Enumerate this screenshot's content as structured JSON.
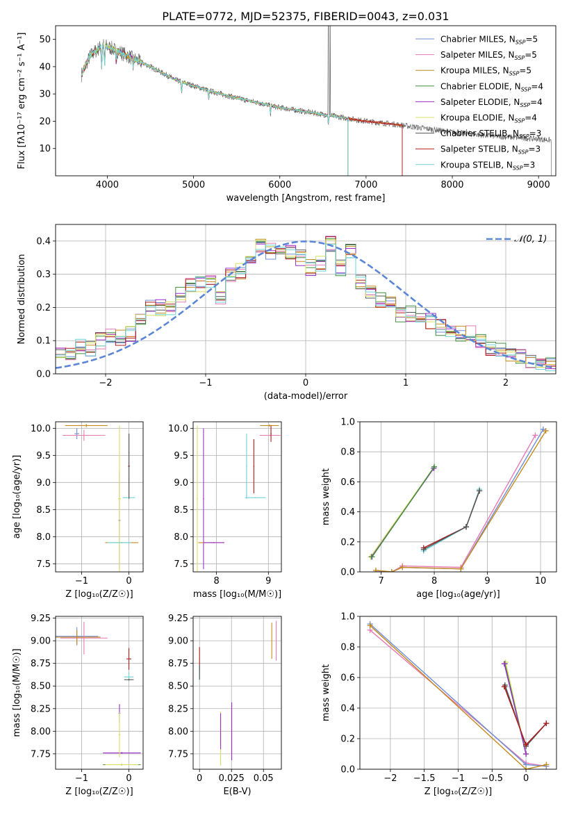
{
  "figure_title": "PLATE=0772, MJD=52375, FIBERID=0043, z=0.031",
  "models": [
    {
      "label": "Chabrier MILES, N",
      "nssp": "=5",
      "color": "#6b8ed6"
    },
    {
      "label": "Salpeter MILES, N",
      "nssp": "=5",
      "color": "#e879b4"
    },
    {
      "label": "Kroupa MILES, N",
      "nssp": "=5",
      "color": "#c58a1d"
    },
    {
      "label": "Chabrier ELODIE, N",
      "nssp": "=4",
      "color": "#3f8f3f"
    },
    {
      "label": "Salpeter ELODIE, N",
      "nssp": "=4",
      "color": "#9b2ecb"
    },
    {
      "label": "Kroupa ELODIE, N",
      "nssp": "=4",
      "color": "#d6e05c"
    },
    {
      "label": "Chabrier STELIB, N",
      "nssp": "=3",
      "color": "#555555"
    },
    {
      "label": "Salpeter STELIB, N",
      "nssp": "=3",
      "color": "#b01a1a"
    },
    {
      "label": "Kroupa STELIB, N",
      "nssp": "=3",
      "color": "#6cd3d8"
    }
  ],
  "legend_sub": "SSP",
  "chart_data": [
    {
      "id": "spectrum",
      "type": "line",
      "xlabel": "wavelength [Angstrom, rest frame]",
      "ylabel": "Flux [fλ10⁻¹⁷ erg cm⁻² s⁻¹ A⁻¹]",
      "xlim": [
        3400,
        9200
      ],
      "ylim": [
        0,
        55
      ],
      "xticks": [
        4000,
        5000,
        6000,
        7000,
        8000,
        9000
      ],
      "yticks": [
        10,
        20,
        30,
        40,
        50
      ],
      "continuum": [
        [
          3700,
          37
        ],
        [
          3800,
          44
        ],
        [
          3950,
          48
        ],
        [
          4100,
          46
        ],
        [
          4300,
          43
        ],
        [
          4500,
          40
        ],
        [
          4800,
          35
        ],
        [
          5000,
          33
        ],
        [
          5200,
          31
        ],
        [
          5500,
          28.5
        ],
        [
          6000,
          25
        ],
        [
          6500,
          22.5
        ],
        [
          7000,
          20
        ],
        [
          7300,
          19
        ],
        [
          7420,
          18.5
        ],
        [
          8000,
          16
        ],
        [
          8500,
          14.5
        ],
        [
          9000,
          13.5
        ],
        [
          9150,
          13
        ]
      ],
      "model_end": [
        [
          0,
          7420
        ],
        [
          1,
          7420
        ],
        [
          2,
          7420
        ],
        [
          3,
          6790
        ],
        [
          4,
          6790
        ],
        [
          5,
          6790
        ],
        [
          6,
          9150
        ],
        [
          7,
          7420
        ],
        [
          8,
          6790
        ]
      ]
    },
    {
      "id": "residuals",
      "type": "line",
      "xlabel": "(data-model)/error",
      "ylabel": "Normed distribution",
      "xlim": [
        -2.5,
        2.5
      ],
      "ylim": [
        0,
        0.45
      ],
      "xticks": [
        -2,
        -1,
        0,
        1,
        2
      ],
      "yticks": [
        0.0,
        0.1,
        0.2,
        0.3,
        0.4
      ],
      "ref_curve": "𝒩(0, 1)",
      "bin_centers": [
        -2.45,
        -2.35,
        -2.25,
        -2.15,
        -2.05,
        -1.95,
        -1.85,
        -1.75,
        -1.65,
        -1.55,
        -1.45,
        -1.35,
        -1.25,
        -1.15,
        -1.05,
        -0.95,
        -0.85,
        -0.75,
        -0.65,
        -0.55,
        -0.45,
        -0.35,
        -0.25,
        -0.15,
        -0.05,
        0.05,
        0.15,
        0.25,
        0.35,
        0.45,
        0.55,
        0.65,
        0.75,
        0.85,
        0.95,
        1.05,
        1.15,
        1.25,
        1.35,
        1.45,
        1.55,
        1.65,
        1.75,
        1.85,
        1.95,
        2.05,
        2.15,
        2.25,
        2.35,
        2.45
      ],
      "hist_mean": [
        0.055,
        0.06,
        0.08,
        0.075,
        0.1,
        0.11,
        0.11,
        0.12,
        0.16,
        0.2,
        0.2,
        0.2,
        0.24,
        0.27,
        0.27,
        0.28,
        0.23,
        0.3,
        0.31,
        0.34,
        0.39,
        0.37,
        0.38,
        0.37,
        0.35,
        0.32,
        0.33,
        0.39,
        0.32,
        0.37,
        0.28,
        0.25,
        0.22,
        0.22,
        0.18,
        0.18,
        0.16,
        0.16,
        0.14,
        0.13,
        0.12,
        0.12,
        0.1,
        0.08,
        0.07,
        0.06,
        0.05,
        0.04,
        0.035,
        0.03
      ]
    },
    {
      "id": "age-vs-z",
      "type": "scatter",
      "xlabel": "Z [log₁₀(Z/Z☉)]",
      "ylabel": "age  [log₁₀(age/yr)]",
      "xlim": [
        -1.55,
        0.3
      ],
      "ylim": [
        7.35,
        10.12
      ],
      "xticks": [
        -1,
        0
      ],
      "yticks": [
        7.5,
        8.0,
        8.5,
        9.0,
        9.5,
        10.0
      ],
      "points": [
        {
          "m": 0,
          "x": -1.1,
          "y": 9.9,
          "ex": 0.05,
          "ey": 0.1
        },
        {
          "m": 1,
          "x": -0.95,
          "y": 9.87,
          "ex": 0.45,
          "ey": 0.1
        },
        {
          "m": 2,
          "x": -0.9,
          "y": 10.05,
          "ex": 0.45,
          "ey": 0.03
        },
        {
          "m": 4,
          "x": -0.2,
          "y": 8.3,
          "ex": 0.02,
          "ey": 0.9
        },
        {
          "m": 5,
          "x": -0.2,
          "y": 8.7,
          "ex": 0.03,
          "ey": 1.35
        },
        {
          "m": 7,
          "x": 0.0,
          "y": 9.3,
          "ex": 0.02,
          "ey": 0.6
        },
        {
          "m": 8,
          "x": 0.0,
          "y": 8.72,
          "ex": 0.13,
          "ey": 0.01
        },
        {
          "m": 6,
          "x": 0.0,
          "y": 9.3,
          "ex": 0.01,
          "ey": 0.6
        },
        {
          "m": 2,
          "x": -0.15,
          "y": 7.89,
          "ex": 0.35,
          "ey": 0.01
        },
        {
          "m": 8,
          "x": -0.2,
          "y": 7.89,
          "ex": 0.25,
          "ey": 0.01
        }
      ]
    },
    {
      "id": "age-vs-mass",
      "type": "scatter",
      "xlabel": "mass [log₁₀(M/M☉)]",
      "ylabel": "",
      "xlim": [
        7.55,
        9.25
      ],
      "ylim": [
        7.35,
        10.12
      ],
      "xticks": [
        8,
        9
      ],
      "yticks": [
        7.5,
        8.0,
        8.5,
        9.0,
        9.5,
        10.0
      ],
      "points": [
        {
          "m": 5,
          "x": 7.63,
          "y": 8.7,
          "ex": 0.01,
          "ey": 1.35
        },
        {
          "m": 4,
          "x": 7.75,
          "y": 8.7,
          "ex": 0.01,
          "ey": 1.3
        },
        {
          "m": 2,
          "x": 7.9,
          "y": 7.89,
          "ex": 0.25,
          "ey": 0.01
        },
        {
          "m": 4,
          "x": 7.95,
          "y": 7.89,
          "ex": 0.2,
          "ey": 0.01
        },
        {
          "m": 8,
          "x": 8.58,
          "y": 9.3,
          "ex": 0.01,
          "ey": 0.6
        },
        {
          "m": 7,
          "x": 8.72,
          "y": 9.3,
          "ex": 0.01,
          "ey": 0.5
        },
        {
          "m": 8,
          "x": 8.75,
          "y": 8.72,
          "ex": 0.2,
          "ey": 0.01
        },
        {
          "m": 2,
          "x": 9.02,
          "y": 10.05,
          "ex": 0.18,
          "ey": 0.02
        },
        {
          "m": 1,
          "x": 9.03,
          "y": 9.87,
          "ex": 0.2,
          "ey": 0.01
        },
        {
          "m": 7,
          "x": 9.05,
          "y": 9.9,
          "ex": 0.01,
          "ey": 0.15
        }
      ]
    },
    {
      "id": "weight-vs-age",
      "type": "line",
      "xlabel": "age  [log₁₀(age/yr)]",
      "ylabel": "mass weight",
      "xlim": [
        6.6,
        10.3
      ],
      "ylim": [
        0,
        1
      ],
      "xticks": [
        7,
        8,
        9,
        10
      ],
      "yticks": [
        0.0,
        0.2,
        0.4,
        0.6,
        0.8,
        1.0
      ],
      "series": [
        {
          "m": 5,
          "x": [
            6.8,
            8.0
          ],
          "y": [
            0.1,
            0.7
          ]
        },
        {
          "m": 4,
          "x": [
            6.82,
            7.99
          ],
          "y": [
            0.1,
            0.69
          ]
        },
        {
          "m": 3,
          "x": [
            6.83,
            8.0
          ],
          "y": [
            0.1,
            0.7
          ]
        },
        {
          "m": 8,
          "x": [
            7.8,
            8.6,
            8.85
          ],
          "y": [
            0.14,
            0.3,
            0.55
          ]
        },
        {
          "m": 7,
          "x": [
            7.8,
            8.6,
            8.85
          ],
          "y": [
            0.16,
            0.3,
            0.54
          ]
        },
        {
          "m": 6,
          "x": [
            7.8,
            8.6,
            8.85
          ],
          "y": [
            0.15,
            0.3,
            0.54
          ]
        },
        {
          "m": 1,
          "x": [
            6.9,
            7.2,
            7.4,
            8.5,
            9.9
          ],
          "y": [
            0.0,
            0.0,
            0.04,
            0.03,
            0.91
          ]
        },
        {
          "m": 0,
          "x": [
            6.9,
            7.2,
            7.4,
            8.5,
            10.05
          ],
          "y": [
            0.0,
            0.0,
            0.03,
            0.02,
            0.95
          ]
        },
        {
          "m": 2,
          "x": [
            6.9,
            7.2,
            7.4,
            8.5,
            10.1
          ],
          "y": [
            0.01,
            0.0,
            0.03,
            0.02,
            0.94
          ]
        }
      ]
    },
    {
      "id": "mass-vs-z",
      "type": "scatter",
      "xlabel": "Z [log₁₀(Z/Z☉)]",
      "ylabel": "mass [log₁₀(M/M☉)]",
      "xlim": [
        -1.55,
        0.3
      ],
      "ylim": [
        7.58,
        9.27
      ],
      "xticks": [
        -1,
        0
      ],
      "yticks": [
        7.75,
        8.0,
        8.25,
        8.5,
        8.75,
        9.0,
        9.25
      ],
      "points": [
        {
          "m": 0,
          "x": -1.1,
          "y": 9.05,
          "ex": 0.45,
          "ey": 0.1
        },
        {
          "m": 1,
          "x": -0.95,
          "y": 9.03,
          "ex": 0.5,
          "ey": 0.18
        },
        {
          "m": 2,
          "x": -1.1,
          "y": 9.04,
          "ex": 0.5,
          "ey": 0.08
        },
        {
          "m": 7,
          "x": 0.0,
          "y": 8.8,
          "ex": 0.05,
          "ey": 0.12
        },
        {
          "m": 8,
          "x": 0.0,
          "y": 8.6,
          "ex": 0.1,
          "ey": 0.05
        },
        {
          "m": 6,
          "x": 0.0,
          "y": 8.57,
          "ex": 0.1,
          "ey": 0.01
        },
        {
          "m": 4,
          "x": -0.2,
          "y": 8.2,
          "ex": 0.02,
          "ey": 0.1
        },
        {
          "m": 4,
          "x": -0.15,
          "y": 7.76,
          "ex": 0.4,
          "ey": 0.01
        },
        {
          "m": 5,
          "x": -0.2,
          "y": 7.96,
          "ex": 0.02,
          "ey": 0.25
        },
        {
          "m": 3,
          "x": -0.15,
          "y": 7.63,
          "ex": 0.4,
          "ey": 0.01
        },
        {
          "m": 5,
          "x": -0.15,
          "y": 7.63,
          "ex": 0.35,
          "ey": 0.01
        }
      ]
    },
    {
      "id": "mass-vs-ebv",
      "type": "scatter",
      "xlabel": "E(B-V)",
      "ylabel": "",
      "xlim": [
        -0.005,
        0.064
      ],
      "ylim": [
        7.58,
        9.27
      ],
      "xticks": [
        0.0,
        0.025,
        0.05
      ],
      "yticks": [
        7.75,
        8.0,
        8.25,
        8.5,
        8.75,
        9.0,
        9.25
      ],
      "points": [
        {
          "m": 7,
          "x": 0.0,
          "y": 8.8,
          "ex": 0.0002,
          "ey": 0.13
        },
        {
          "m": 8,
          "x": 0.0,
          "y": 8.65,
          "ex": 0.0002,
          "ey": 0.08
        },
        {
          "m": 6,
          "x": 0.0,
          "y": 8.65,
          "ex": 0.0002,
          "ey": 0.08
        },
        {
          "m": 5,
          "x": 0.0165,
          "y": 7.92,
          "ex": 0.0002,
          "ey": 0.3
        },
        {
          "m": 4,
          "x": 0.0165,
          "y": 8.0,
          "ex": 0.0002,
          "ey": 0.2
        },
        {
          "m": 4,
          "x": 0.0252,
          "y": 8.0,
          "ex": 0.0002,
          "ey": 0.32
        },
        {
          "m": 2,
          "x": 0.0565,
          "y": 9.0,
          "ex": 0.0002,
          "ey": 0.2
        },
        {
          "m": 1,
          "x": 0.06,
          "y": 9.0,
          "ex": 0.0002,
          "ey": 0.22
        }
      ]
    },
    {
      "id": "weight-vs-z",
      "type": "line",
      "xlabel": "Z [log₁₀(Z/Z☉)]",
      "ylabel": "mass weight",
      "xlim": [
        -2.45,
        0.45
      ],
      "ylim": [
        0,
        1
      ],
      "xticks": [
        -2.0,
        -1.5,
        -1.0,
        -0.5,
        0.0
      ],
      "yticks": [
        0.0,
        0.2,
        0.4,
        0.6,
        0.8,
        1.0
      ],
      "series": [
        {
          "m": 5,
          "x": [
            -0.3,
            0.0
          ],
          "y": [
            0.7,
            0.1
          ]
        },
        {
          "m": 3,
          "x": [
            -0.31,
            0.0
          ],
          "y": [
            0.69,
            0.1
          ]
        },
        {
          "m": 4,
          "x": [
            -0.32,
            0.0
          ],
          "y": [
            0.69,
            0.1
          ]
        },
        {
          "m": 8,
          "x": [
            -0.3,
            0.0,
            0.3
          ],
          "y": [
            0.54,
            0.15,
            0.3
          ]
        },
        {
          "m": 6,
          "x": [
            -0.31,
            0.0,
            0.3
          ],
          "y": [
            0.55,
            0.15,
            0.3
          ]
        },
        {
          "m": 7,
          "x": [
            -0.32,
            0.0,
            0.3
          ],
          "y": [
            0.54,
            0.16,
            0.3
          ]
        },
        {
          "m": 1,
          "x": [
            -2.3,
            0.0,
            0.3
          ],
          "y": [
            0.91,
            0.04,
            0.02
          ]
        },
        {
          "m": 0,
          "x": [
            -2.3,
            0.0,
            0.3
          ],
          "y": [
            0.95,
            0.03,
            0.02
          ]
        },
        {
          "m": 2,
          "x": [
            -2.3,
            0.0,
            0.3
          ],
          "y": [
            0.94,
            0.0,
            0.03
          ]
        }
      ]
    }
  ]
}
